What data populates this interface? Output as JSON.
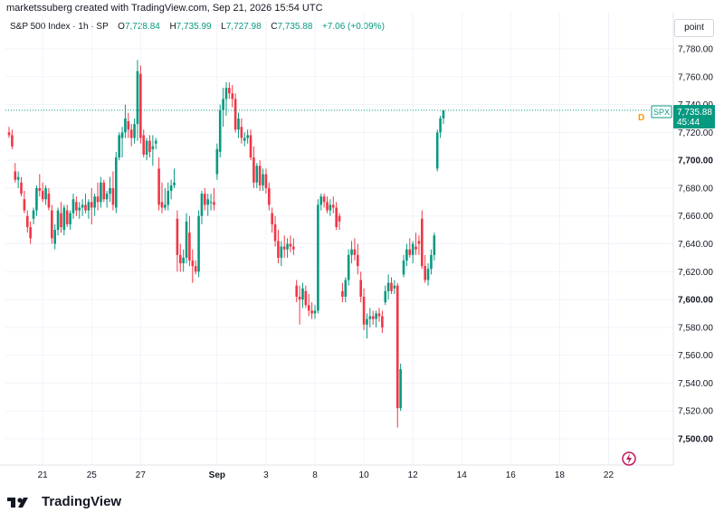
{
  "caption": "marketssuberg created with TradingView.com, Sep 21, 2026 15:54 UTC",
  "header": {
    "symbol": "S&P 500 Index · 1h · SP",
    "open_label": "O",
    "open": "7,728.84",
    "high_label": "H",
    "high": "7,735.99",
    "low_label": "L",
    "low": "7,727.98",
    "close_label": "C",
    "close": "7,735.88",
    "change": "+7.06 (+0.09%)"
  },
  "scale_button": "point",
  "logo_text": "TradingView",
  "price_tag": {
    "symbol": "SPX",
    "price": "7,735.88",
    "countdown": "45:44",
    "marker": "D"
  },
  "colors": {
    "up": "#089981",
    "down": "#f23645",
    "grid": "#f0f3fa",
    "text": "#131722",
    "tag": "#089981"
  },
  "chart_data": {
    "type": "candlestick",
    "yaxis": {
      "ticks": [
        "7,780.00",
        "7,760.00",
        "7,740.00",
        "7,720.00",
        "7,700.00",
        "7,680.00",
        "7,660.00",
        "7,640.00",
        "7,620.00",
        "7,600.00",
        "7,580.00",
        "7,560.00",
        "7,540.00",
        "7,520.00",
        "7,500.00"
      ],
      "tick_values": [
        7780,
        7760,
        7740,
        7720,
        7700,
        7680,
        7660,
        7640,
        7620,
        7600,
        7580,
        7560,
        7540,
        7520,
        7500
      ],
      "bold_ticks": [
        "7,700.00",
        "7,600.00",
        "7,500.00"
      ],
      "range": [
        7490,
        7790
      ]
    },
    "xaxis": {
      "ticks": [
        "21",
        "25",
        "27",
        "Sep",
        "3",
        "8",
        "10",
        "12",
        "14",
        "16",
        "18",
        "22"
      ],
      "tick_index": [
        11,
        27,
        43,
        68,
        84,
        100,
        116,
        132,
        148,
        164,
        180,
        196
      ],
      "bold_ticks": [
        "Sep"
      ]
    },
    "last_price": 7735.88,
    "ohlc": [
      [
        7720,
        7724,
        7716,
        7718
      ],
      [
        7718,
        7722,
        7708,
        7710
      ],
      [
        7692,
        7698,
        7684,
        7686
      ],
      [
        7686,
        7692,
        7680,
        7688
      ],
      [
        7684,
        7688,
        7674,
        7676
      ],
      [
        7672,
        7678,
        7662,
        7664
      ],
      [
        7660,
        7664,
        7648,
        7652
      ],
      [
        7652,
        7656,
        7640,
        7644
      ],
      [
        7658,
        7666,
        7654,
        7664
      ],
      [
        7664,
        7682,
        7660,
        7680
      ],
      [
        7680,
        7690,
        7674,
        7678
      ],
      [
        7678,
        7684,
        7670,
        7672
      ],
      [
        7672,
        7682,
        7668,
        7680
      ],
      [
        7676,
        7680,
        7664,
        7666
      ],
      [
        7664,
        7668,
        7640,
        7644
      ],
      [
        7640,
        7654,
        7636,
        7650
      ],
      [
        7650,
        7666,
        7646,
        7664
      ],
      [
        7662,
        7670,
        7648,
        7652
      ],
      [
        7650,
        7668,
        7646,
        7666
      ],
      [
        7664,
        7668,
        7652,
        7654
      ],
      [
        7654,
        7664,
        7650,
        7662
      ],
      [
        7662,
        7676,
        7658,
        7672
      ],
      [
        7670,
        7674,
        7660,
        7664
      ],
      [
        7664,
        7670,
        7658,
        7666
      ],
      [
        7666,
        7672,
        7660,
        7668
      ],
      [
        7668,
        7676,
        7662,
        7664
      ],
      [
        7664,
        7672,
        7658,
        7670
      ],
      [
        7670,
        7680,
        7654,
        7666
      ],
      [
        7666,
        7676,
        7660,
        7674
      ],
      [
        7674,
        7684,
        7664,
        7670
      ],
      [
        7670,
        7688,
        7666,
        7684
      ],
      [
        7684,
        7686,
        7670,
        7672
      ],
      [
        7672,
        7678,
        7666,
        7676
      ],
      [
        7676,
        7688,
        7670,
        7680
      ],
      [
        7680,
        7692,
        7664,
        7668
      ],
      [
        7666,
        7706,
        7662,
        7702
      ],
      [
        7702,
        7720,
        7700,
        7718
      ],
      [
        7716,
        7724,
        7702,
        7720
      ],
      [
        7720,
        7740,
        7716,
        7730
      ],
      [
        7728,
        7734,
        7716,
        7722
      ],
      [
        7722,
        7726,
        7710,
        7716
      ],
      [
        7716,
        7730,
        7712,
        7726
      ],
      [
        7726,
        7772,
        7714,
        7764
      ],
      [
        7762,
        7768,
        7712,
        7716
      ],
      [
        7718,
        7722,
        7702,
        7704
      ],
      [
        7704,
        7716,
        7700,
        7714
      ],
      [
        7714,
        7718,
        7702,
        7706
      ],
      [
        7708,
        7718,
        7696,
        7710
      ],
      [
        7712,
        7716,
        7708,
        7714
      ],
      [
        7694,
        7702,
        7664,
        7668
      ],
      [
        7670,
        7684,
        7662,
        7666
      ],
      [
        7666,
        7680,
        7664,
        7668
      ],
      [
        7668,
        7684,
        7664,
        7678
      ],
      [
        7678,
        7686,
        7672,
        7682
      ],
      [
        7682,
        7694,
        7680,
        7684
      ],
      [
        7658,
        7664,
        7620,
        7632
      ],
      [
        7632,
        7640,
        7620,
        7626
      ],
      [
        7626,
        7636,
        7620,
        7630
      ],
      [
        7630,
        7662,
        7626,
        7656
      ],
      [
        7648,
        7660,
        7624,
        7628
      ],
      [
        7628,
        7636,
        7612,
        7624
      ],
      [
        7624,
        7628,
        7618,
        7620
      ],
      [
        7620,
        7664,
        7616,
        7660
      ],
      [
        7660,
        7678,
        7654,
        7676
      ],
      [
        7676,
        7680,
        7664,
        7668
      ],
      [
        7668,
        7676,
        7660,
        7672
      ],
      [
        7670,
        7676,
        7664,
        7670
      ],
      [
        7670,
        7680,
        7664,
        7668
      ],
      [
        7690,
        7712,
        7686,
        7708
      ],
      [
        7706,
        7740,
        7702,
        7736
      ],
      [
        7736,
        7752,
        7724,
        7744
      ],
      [
        7744,
        7756,
        7732,
        7752
      ],
      [
        7752,
        7756,
        7744,
        7748
      ],
      [
        7748,
        7754,
        7738,
        7744
      ],
      [
        7744,
        7748,
        7720,
        7722
      ],
      [
        7722,
        7734,
        7716,
        7730
      ],
      [
        7724,
        7730,
        7712,
        7716
      ],
      [
        7714,
        7720,
        7710,
        7716
      ],
      [
        7716,
        7722,
        7712,
        7718
      ],
      [
        7718,
        7722,
        7700,
        7702
      ],
      [
        7702,
        7710,
        7680,
        7684
      ],
      [
        7684,
        7698,
        7680,
        7696
      ],
      [
        7696,
        7700,
        7678,
        7682
      ],
      [
        7682,
        7694,
        7678,
        7690
      ],
      [
        7690,
        7694,
        7676,
        7680
      ],
      [
        7680,
        7684,
        7664,
        7668
      ],
      [
        7662,
        7666,
        7648,
        7654
      ],
      [
        7654,
        7660,
        7638,
        7642
      ],
      [
        7642,
        7650,
        7626,
        7630
      ],
      [
        7630,
        7642,
        7624,
        7638
      ],
      [
        7638,
        7646,
        7630,
        7636
      ],
      [
        7636,
        7644,
        7630,
        7640
      ],
      [
        7640,
        7646,
        7634,
        7638
      ],
      [
        7638,
        7644,
        7632,
        7636
      ],
      [
        7610,
        7614,
        7598,
        7602
      ],
      [
        7602,
        7610,
        7582,
        7600
      ],
      [
        7600,
        7612,
        7594,
        7608
      ],
      [
        7606,
        7610,
        7594,
        7596
      ],
      [
        7596,
        7604,
        7588,
        7592
      ],
      [
        7592,
        7598,
        7586,
        7590
      ],
      [
        7590,
        7596,
        7586,
        7592
      ],
      [
        7592,
        7672,
        7590,
        7668
      ],
      [
        7668,
        7676,
        7664,
        7674
      ],
      [
        7674,
        7676,
        7666,
        7670
      ],
      [
        7670,
        7674,
        7662,
        7664
      ],
      [
        7664,
        7672,
        7660,
        7668
      ],
      [
        7668,
        7674,
        7662,
        7666
      ],
      [
        7666,
        7670,
        7650,
        7652
      ],
      [
        7660,
        7662,
        7650,
        7656
      ],
      [
        7606,
        7612,
        7598,
        7602
      ],
      [
        7602,
        7616,
        7598,
        7614
      ],
      [
        7614,
        7636,
        7610,
        7632
      ],
      [
        7632,
        7642,
        7626,
        7636
      ],
      [
        7636,
        7644,
        7628,
        7632
      ],
      [
        7632,
        7640,
        7618,
        7624
      ],
      [
        7614,
        7620,
        7598,
        7602
      ],
      [
        7602,
        7608,
        7578,
        7582
      ],
      [
        7582,
        7590,
        7572,
        7586
      ],
      [
        7586,
        7594,
        7580,
        7588
      ],
      [
        7588,
        7592,
        7582,
        7586
      ],
      [
        7586,
        7592,
        7580,
        7590
      ],
      [
        7590,
        7594,
        7584,
        7588
      ],
      [
        7588,
        7592,
        7576,
        7580
      ],
      [
        7598,
        7610,
        7596,
        7606
      ],
      [
        7606,
        7618,
        7600,
        7612
      ],
      [
        7612,
        7616,
        7604,
        7606
      ],
      [
        7608,
        7614,
        7604,
        7610
      ],
      [
        7610,
        7612,
        7508,
        7522
      ],
      [
        7522,
        7554,
        7520,
        7550
      ],
      [
        7618,
        7632,
        7616,
        7628
      ],
      [
        7628,
        7640,
        7624,
        7636
      ],
      [
        7636,
        7644,
        7630,
        7632
      ],
      [
        7632,
        7642,
        7626,
        7640
      ],
      [
        7638,
        7648,
        7632,
        7636
      ],
      [
        7642,
        7646,
        7632,
        7640
      ],
      [
        7658,
        7664,
        7622,
        7624
      ],
      [
        7624,
        7632,
        7612,
        7614
      ],
      [
        7614,
        7626,
        7610,
        7622
      ],
      [
        7622,
        7636,
        7618,
        7632
      ],
      [
        7632,
        7648,
        7628,
        7646
      ],
      [
        7694,
        7722,
        7692,
        7720
      ],
      [
        7720,
        7732,
        7716,
        7730
      ],
      [
        7730,
        7736,
        7726,
        7735.88
      ]
    ]
  }
}
